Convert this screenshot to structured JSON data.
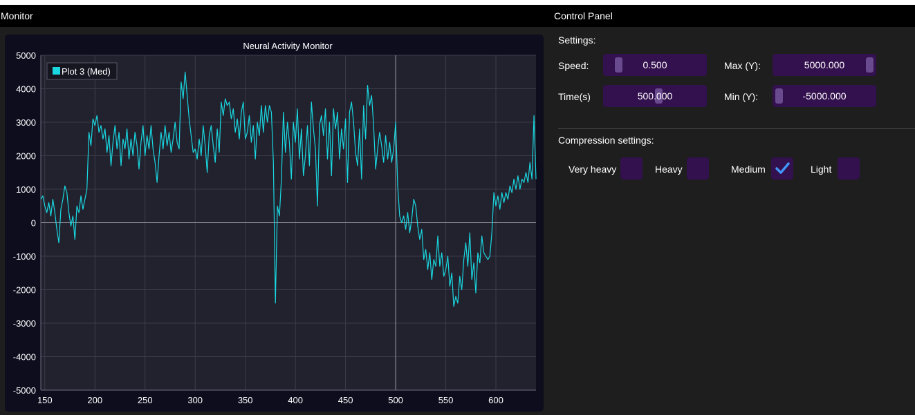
{
  "windows": {
    "monitor_title": "Monitor",
    "control_title": "Control Panel"
  },
  "chart_data": {
    "type": "line",
    "title": "Neural Activity Monitor",
    "xlim": [
      146,
      640
    ],
    "ylim": [
      -5000,
      5000
    ],
    "x_ticks": [
      150,
      200,
      250,
      300,
      350,
      400,
      450,
      500,
      550,
      600
    ],
    "y_ticks": [
      5000,
      4000,
      3000,
      2000,
      1000,
      0,
      -1000,
      -2000,
      -3000,
      -4000,
      -5000
    ],
    "grid": true,
    "legend": "top-left",
    "crosshair_x": 500,
    "series": [
      {
        "name": "Plot 3 (Med)",
        "color": "#19d8e0",
        "points": [
          [
            146,
            700
          ],
          [
            148,
            800
          ],
          [
            150,
            500
          ],
          [
            152,
            300
          ],
          [
            154,
            600
          ],
          [
            156,
            200
          ],
          [
            158,
            700
          ],
          [
            160,
            300
          ],
          [
            162,
            -200
          ],
          [
            164,
            -600
          ],
          [
            166,
            400
          ],
          [
            168,
            700
          ],
          [
            170,
            1100
          ],
          [
            172,
            900
          ],
          [
            174,
            300
          ],
          [
            176,
            -100
          ],
          [
            178,
            200
          ],
          [
            180,
            -500
          ],
          [
            182,
            500
          ],
          [
            184,
            300
          ],
          [
            186,
            800
          ],
          [
            188,
            400
          ],
          [
            190,
            700
          ],
          [
            192,
            1000
          ],
          [
            194,
            2700
          ],
          [
            196,
            2300
          ],
          [
            198,
            3100
          ],
          [
            200,
            2900
          ],
          [
            202,
            3200
          ],
          [
            204,
            2700
          ],
          [
            206,
            2900
          ],
          [
            208,
            2500
          ],
          [
            210,
            2800
          ],
          [
            212,
            2100
          ],
          [
            214,
            2600
          ],
          [
            216,
            1700
          ],
          [
            218,
            2400
          ],
          [
            220,
            2900
          ],
          [
            222,
            2200
          ],
          [
            224,
            2700
          ],
          [
            226,
            1700
          ],
          [
            228,
            2500
          ],
          [
            230,
            2200
          ],
          [
            232,
            2800
          ],
          [
            234,
            1900
          ],
          [
            236,
            2500
          ],
          [
            238,
            2000
          ],
          [
            240,
            2700
          ],
          [
            242,
            2300
          ],
          [
            244,
            1600
          ],
          [
            246,
            2400
          ],
          [
            248,
            2900
          ],
          [
            250,
            2000
          ],
          [
            252,
            2600
          ],
          [
            254,
            2200
          ],
          [
            256,
            2900
          ],
          [
            258,
            2200
          ],
          [
            260,
            1800
          ],
          [
            262,
            1200
          ],
          [
            264,
            2000
          ],
          [
            266,
            2700
          ],
          [
            268,
            2200
          ],
          [
            270,
            2900
          ],
          [
            272,
            2300
          ],
          [
            274,
            2700
          ],
          [
            276,
            2100
          ],
          [
            278,
            2500
          ],
          [
            280,
            3000
          ],
          [
            282,
            2400
          ],
          [
            284,
            2200
          ],
          [
            286,
            4200
          ],
          [
            288,
            3700
          ],
          [
            290,
            4500
          ],
          [
            292,
            3800
          ],
          [
            294,
            3100
          ],
          [
            296,
            2600
          ],
          [
            298,
            2100
          ],
          [
            300,
            2200
          ],
          [
            302,
            1900
          ],
          [
            304,
            2500
          ],
          [
            306,
            2000
          ],
          [
            308,
            2900
          ],
          [
            310,
            2300
          ],
          [
            312,
            1500
          ],
          [
            314,
            2600
          ],
          [
            316,
            2900
          ],
          [
            318,
            2300
          ],
          [
            320,
            1800
          ],
          [
            322,
            2800
          ],
          [
            324,
            2100
          ],
          [
            326,
            3600
          ],
          [
            328,
            3200
          ],
          [
            330,
            3700
          ],
          [
            332,
            3500
          ],
          [
            334,
            3600
          ],
          [
            336,
            3100
          ],
          [
            338,
            3400
          ],
          [
            340,
            2700
          ],
          [
            342,
            3100
          ],
          [
            344,
            2500
          ],
          [
            346,
            3300
          ],
          [
            348,
            3600
          ],
          [
            350,
            2500
          ],
          [
            352,
            2700
          ],
          [
            354,
            3200
          ],
          [
            356,
            2400
          ],
          [
            358,
            2900
          ],
          [
            360,
            1900
          ],
          [
            362,
            3000
          ],
          [
            364,
            2600
          ],
          [
            366,
            3500
          ],
          [
            368,
            2700
          ],
          [
            370,
            3500
          ],
          [
            372,
            3000
          ],
          [
            374,
            3500
          ],
          [
            376,
            3300
          ],
          [
            378,
            1800
          ],
          [
            380,
            -2400
          ],
          [
            382,
            500
          ],
          [
            384,
            200
          ],
          [
            386,
            1300
          ],
          [
            388,
            3300
          ],
          [
            390,
            2100
          ],
          [
            392,
            3000
          ],
          [
            394,
            2400
          ],
          [
            396,
            1300
          ],
          [
            398,
            3000
          ],
          [
            400,
            2400
          ],
          [
            402,
            3400
          ],
          [
            404,
            1900
          ],
          [
            406,
            2800
          ],
          [
            408,
            1400
          ],
          [
            410,
            2000
          ],
          [
            412,
            2900
          ],
          [
            414,
            1700
          ],
          [
            416,
            3600
          ],
          [
            418,
            2800
          ],
          [
            420,
            2200
          ],
          [
            422,
            500
          ],
          [
            424,
            2900
          ],
          [
            426,
            3200
          ],
          [
            428,
            2600
          ],
          [
            430,
            3400
          ],
          [
            432,
            1900
          ],
          [
            434,
            3000
          ],
          [
            436,
            1400
          ],
          [
            438,
            3400
          ],
          [
            440,
            2800
          ],
          [
            442,
            3300
          ],
          [
            444,
            1900
          ],
          [
            446,
            2800
          ],
          [
            448,
            2200
          ],
          [
            450,
            3100
          ],
          [
            452,
            1200
          ],
          [
            454,
            3300
          ],
          [
            456,
            3600
          ],
          [
            458,
            3000
          ],
          [
            460,
            2100
          ],
          [
            462,
            1700
          ],
          [
            464,
            2800
          ],
          [
            466,
            1300
          ],
          [
            468,
            3500
          ],
          [
            470,
            2500
          ],
          [
            472,
            4100
          ],
          [
            474,
            3500
          ],
          [
            476,
            3800
          ],
          [
            478,
            2900
          ],
          [
            480,
            1600
          ],
          [
            482,
            2200
          ],
          [
            484,
            2700
          ],
          [
            486,
            2300
          ],
          [
            488,
            1800
          ],
          [
            490,
            2600
          ],
          [
            492,
            1900
          ],
          [
            494,
            2400
          ],
          [
            496,
            1800
          ],
          [
            498,
            2200
          ],
          [
            500,
            3000
          ],
          [
            502,
            1100
          ],
          [
            504,
            200
          ],
          [
            506,
            0
          ],
          [
            508,
            200
          ],
          [
            510,
            -200
          ],
          [
            512,
            300
          ],
          [
            514,
            -300
          ],
          [
            516,
            100
          ],
          [
            518,
            700
          ],
          [
            520,
            500
          ],
          [
            522,
            -100
          ],
          [
            524,
            -500
          ],
          [
            526,
            -200
          ],
          [
            528,
            -1100
          ],
          [
            530,
            -800
          ],
          [
            532,
            -1400
          ],
          [
            534,
            -900
          ],
          [
            536,
            -1700
          ],
          [
            538,
            -1100
          ],
          [
            540,
            -1300
          ],
          [
            542,
            -400
          ],
          [
            544,
            -1300
          ],
          [
            546,
            -900
          ],
          [
            548,
            -1600
          ],
          [
            550,
            -1400
          ],
          [
            552,
            -1000
          ],
          [
            554,
            -1900
          ],
          [
            556,
            -1500
          ],
          [
            558,
            -2500
          ],
          [
            560,
            -2200
          ],
          [
            562,
            -2400
          ],
          [
            564,
            -1600
          ],
          [
            566,
            -2000
          ],
          [
            568,
            -1100
          ],
          [
            570,
            -600
          ],
          [
            572,
            -1300
          ],
          [
            574,
            -300
          ],
          [
            576,
            -1700
          ],
          [
            578,
            -1200
          ],
          [
            580,
            -2100
          ],
          [
            582,
            -900
          ],
          [
            584,
            -1200
          ],
          [
            586,
            -400
          ],
          [
            588,
            -900
          ],
          [
            590,
            -1000
          ],
          [
            592,
            -1100
          ],
          [
            594,
            -1000
          ],
          [
            596,
            -300
          ],
          [
            598,
            900
          ],
          [
            600,
            500
          ],
          [
            602,
            800
          ],
          [
            604,
            400
          ],
          [
            606,
            900
          ],
          [
            608,
            600
          ],
          [
            610,
            900
          ],
          [
            612,
            700
          ],
          [
            614,
            1100
          ],
          [
            616,
            900
          ],
          [
            618,
            1300
          ],
          [
            620,
            1000
          ],
          [
            622,
            1400
          ],
          [
            624,
            1000
          ],
          [
            626,
            1300
          ],
          [
            628,
            1200
          ],
          [
            630,
            1500
          ],
          [
            632,
            1200
          ],
          [
            634,
            1800
          ],
          [
            636,
            1300
          ],
          [
            638,
            3200
          ],
          [
            640,
            1300
          ]
        ]
      }
    ]
  },
  "settings": {
    "section_label": "Settings:",
    "speed": {
      "label": "Speed:",
      "value": "0.500",
      "fraction": 0.1
    },
    "time": {
      "label": "Time(s)",
      "value": "500.000",
      "fraction": 0.54
    },
    "max_y": {
      "label": "Max (Y):",
      "value": "5000.000",
      "fraction": 1.0
    },
    "min_y": {
      "label": "Min (Y):",
      "value": "-5000.000",
      "fraction": 0.0
    }
  },
  "compression": {
    "section_label": "Compression settings:",
    "options": [
      {
        "label": "Very heavy",
        "checked": false
      },
      {
        "label": "Heavy",
        "checked": false
      },
      {
        "label": "Medium",
        "checked": true
      },
      {
        "label": "Light",
        "checked": false
      }
    ]
  },
  "colors": {
    "accent": "#33104e",
    "check": "#4296fa",
    "plot_bg": "#22222f",
    "line": "#19d8e0"
  }
}
